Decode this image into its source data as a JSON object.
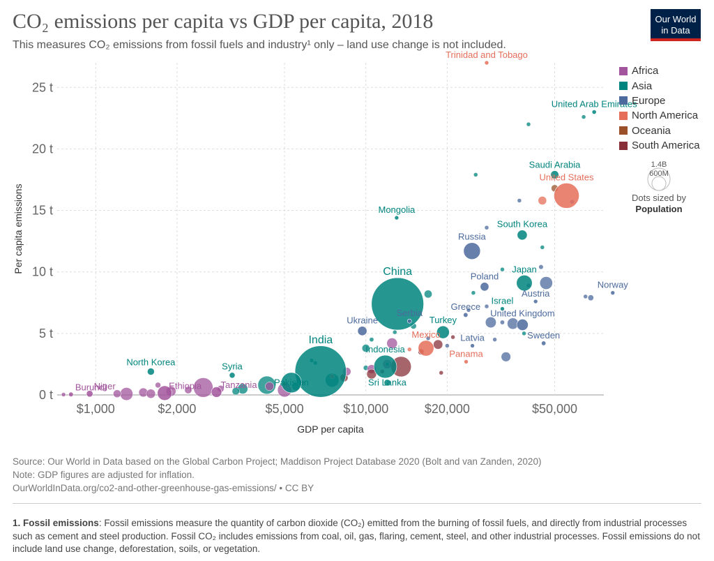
{
  "header": {
    "title": "CO₂ emissions per capita vs GDP per capita, 2018",
    "subtitle": "This measures CO₂ emissions from fossil fuels and industry¹ only – land use change is not included.",
    "logo_line1": "Our World",
    "logo_line2": "in Data"
  },
  "legend": {
    "items": [
      {
        "label": "Africa",
        "color": "#a2559c"
      },
      {
        "label": "Asia",
        "color": "#00847e"
      },
      {
        "label": "Europe",
        "color": "#4c6a9c"
      },
      {
        "label": "North America",
        "color": "#e56e5a"
      },
      {
        "label": "Oceania",
        "color": "#9a5129"
      },
      {
        "label": "South America",
        "color": "#883039"
      }
    ],
    "size_big": "1.4B",
    "size_small": "600M",
    "size_note": "Dots sized by",
    "size_note_bold": "Population"
  },
  "chart_data": {
    "type": "scatter",
    "title": "CO₂ emissions per capita vs GDP per capita, 2018",
    "xlabel": "GDP per capita",
    "ylabel": "Per capita emissions",
    "x_scale": "log",
    "xlim": [
      720,
      76000
    ],
    "ylim": [
      0,
      27
    ],
    "x_ticks": [
      {
        "value": 1000,
        "label": "$1,000"
      },
      {
        "value": 2000,
        "label": "$2,000"
      },
      {
        "value": 5000,
        "label": "$5,000"
      },
      {
        "value": 10000,
        "label": "$10,000"
      },
      {
        "value": 20000,
        "label": "$20,000"
      },
      {
        "value": 50000,
        "label": "$50,000"
      }
    ],
    "y_ticks": [
      {
        "value": 0,
        "label": "0 t"
      },
      {
        "value": 5,
        "label": "5 t"
      },
      {
        "value": 10,
        "label": "10 t"
      },
      {
        "value": 15,
        "label": "15 t"
      },
      {
        "value": 20,
        "label": "20 t"
      },
      {
        "value": 25,
        "label": "25 t"
      }
    ],
    "grid": true,
    "legend_position": "right",
    "labeled_points": [
      {
        "label": "Trinidad and Tobago",
        "region": "North America",
        "gdp": 28000,
        "co2": 27.0,
        "pop": 1.4
      },
      {
        "label": "United Arab Emirates",
        "region": "Asia",
        "gdp": 70000,
        "co2": 23.0,
        "pop": 9.6
      },
      {
        "label": "Saudi Arabia",
        "region": "Asia",
        "gdp": 50000,
        "co2": 17.9,
        "pop": 33.7
      },
      {
        "label": "United States",
        "region": "North America",
        "gdp": 55300,
        "co2": 16.2,
        "pop": 327
      },
      {
        "label": "Mongolia",
        "region": "Asia",
        "gdp": 13000,
        "co2": 14.4,
        "pop": 3.2
      },
      {
        "label": "South Korea",
        "region": "Asia",
        "gdp": 37900,
        "co2": 13.0,
        "pop": 51
      },
      {
        "label": "Russia",
        "region": "Europe",
        "gdp": 24700,
        "co2": 11.7,
        "pop": 145
      },
      {
        "label": "Japan",
        "region": "Asia",
        "gdp": 38600,
        "co2": 9.1,
        "pop": 127
      },
      {
        "label": "Poland",
        "region": "Europe",
        "gdp": 27500,
        "co2": 8.8,
        "pop": 38
      },
      {
        "label": "Norway",
        "region": "Europe",
        "gdp": 82000,
        "co2": 8.3,
        "pop": 5.3
      },
      {
        "label": "China",
        "region": "Asia",
        "gdp": 13100,
        "co2": 7.4,
        "pop": 1400
      },
      {
        "label": "Austria",
        "region": "Europe",
        "gdp": 42500,
        "co2": 7.6,
        "pop": 8.8
      },
      {
        "label": "Israel",
        "region": "Asia",
        "gdp": 32000,
        "co2": 7.0,
        "pop": 8.9
      },
      {
        "label": "Greece",
        "region": "Europe",
        "gdp": 23400,
        "co2": 6.5,
        "pop": 10.7
      },
      {
        "label": "Serbia",
        "region": "Europe",
        "gdp": 14500,
        "co2": 6.0,
        "pop": 7
      },
      {
        "label": "United Kingdom",
        "region": "Europe",
        "gdp": 38000,
        "co2": 5.7,
        "pop": 66
      },
      {
        "label": "Ukraine",
        "region": "Europe",
        "gdp": 9700,
        "co2": 5.2,
        "pop": 44
      },
      {
        "label": "Turkey",
        "region": "Asia",
        "gdp": 19300,
        "co2": 5.1,
        "pop": 82
      },
      {
        "label": "Mexico",
        "region": "North America",
        "gdp": 16700,
        "co2": 3.8,
        "pop": 126
      },
      {
        "label": "Latvia",
        "region": "Europe",
        "gdp": 24800,
        "co2": 4.0,
        "pop": 1.9
      },
      {
        "label": "Sweden",
        "region": "Europe",
        "gdp": 45500,
        "co2": 4.2,
        "pop": 10.2
      },
      {
        "label": "Panama",
        "region": "North America",
        "gdp": 23500,
        "co2": 2.7,
        "pop": 4.2
      },
      {
        "label": "India",
        "region": "Asia",
        "gdp": 6800,
        "co2": 1.9,
        "pop": 1350
      },
      {
        "label": "Indonesia",
        "region": "Asia",
        "gdp": 11800,
        "co2": 2.3,
        "pop": 268
      },
      {
        "label": "Pakistan",
        "region": "Asia",
        "gdp": 5300,
        "co2": 1.0,
        "pop": 212
      },
      {
        "label": "Sri Lanka",
        "region": "Asia",
        "gdp": 12000,
        "co2": 1.0,
        "pop": 21.7
      },
      {
        "label": "North Korea",
        "region": "Asia",
        "gdp": 1600,
        "co2": 1.9,
        "pop": 25.5
      },
      {
        "label": "Syria",
        "region": "Asia",
        "gdp": 3200,
        "co2": 1.6,
        "pop": 17
      },
      {
        "label": "Ethiopia",
        "region": "Africa",
        "gdp": 1800,
        "co2": 0.15,
        "pop": 109
      },
      {
        "label": "Tanzania",
        "region": "Africa",
        "gdp": 2800,
        "co2": 0.23,
        "pop": 56
      },
      {
        "label": "Burundi",
        "region": "Africa",
        "gdp": 810,
        "co2": 0.04,
        "pop": 11
      },
      {
        "label": "Niger",
        "region": "Africa",
        "gdp": 950,
        "co2": 0.1,
        "pop": 22
      }
    ],
    "unlabeled_points": [
      {
        "region": "Asia",
        "gdp": 40000,
        "co2": 22.0,
        "pop": 4
      },
      {
        "region": "Asia",
        "gdp": 64000,
        "co2": 22.6,
        "pop": 2.8
      },
      {
        "region": "Asia",
        "gdp": 25500,
        "co2": 17.9,
        "pop": 0.4
      },
      {
        "region": "Europe",
        "gdp": 37000,
        "co2": 15.8,
        "pop": 0.6
      },
      {
        "region": "North America",
        "gdp": 45000,
        "co2": 15.8,
        "pop": 37
      },
      {
        "region": "Oceania",
        "gdp": 50000,
        "co2": 16.8,
        "pop": 25
      },
      {
        "region": "Europe",
        "gdp": 58000,
        "co2": 15.7,
        "pop": 0.5
      },
      {
        "region": "Europe",
        "gdp": 28000,
        "co2": 13.6,
        "pop": 1.3
      },
      {
        "region": "Asia",
        "gdp": 45000,
        "co2": 12.0,
        "pop": 2.7
      },
      {
        "region": "Europe",
        "gdp": 44500,
        "co2": 10.4,
        "pop": 10.6
      },
      {
        "region": "Asia",
        "gdp": 32000,
        "co2": 10.2,
        "pop": 2
      },
      {
        "region": "Europe",
        "gdp": 46500,
        "co2": 9.1,
        "pop": 83
      },
      {
        "region": "Asia",
        "gdp": 25000,
        "co2": 8.3,
        "pop": 6
      },
      {
        "region": "Asia",
        "gdp": 17000,
        "co2": 8.2,
        "pop": 32
      },
      {
        "region": "Europe",
        "gdp": 40000,
        "co2": 8.9,
        "pop": 1.3
      },
      {
        "region": "Europe",
        "gdp": 65000,
        "co2": 8.0,
        "pop": 0.6
      },
      {
        "region": "Europe",
        "gdp": 68000,
        "co2": 7.9,
        "pop": 17
      },
      {
        "region": "Europe",
        "gdp": 28000,
        "co2": 7.2,
        "pop": 4
      },
      {
        "region": "Europe",
        "gdp": 24000,
        "co2": 6.9,
        "pop": 2
      },
      {
        "region": "Asia",
        "gdp": 15000,
        "co2": 5.6,
        "pop": 18
      },
      {
        "region": "Europe",
        "gdp": 32000,
        "co2": 5.9,
        "pop": 10
      },
      {
        "region": "Europe",
        "gdp": 35000,
        "co2": 5.8,
        "pop": 65
      },
      {
        "region": "Asia",
        "gdp": 38500,
        "co2": 5.0,
        "pop": 4
      },
      {
        "region": "Europe",
        "gdp": 29000,
        "co2": 5.9,
        "pop": 60
      },
      {
        "region": "Europe",
        "gdp": 30000,
        "co2": 4.5,
        "pop": 2
      },
      {
        "region": "Asia",
        "gdp": 10500,
        "co2": 4.5,
        "pop": 10
      },
      {
        "region": "Europe",
        "gdp": 17000,
        "co2": 4.6,
        "pop": 2
      },
      {
        "region": "Europe",
        "gdp": 20000,
        "co2": 4.0,
        "pop": 3
      },
      {
        "region": "Europe",
        "gdp": 33000,
        "co2": 3.1,
        "pop": 47
      },
      {
        "region": "South America",
        "gdp": 21000,
        "co2": 4.7,
        "pop": 1.1
      },
      {
        "region": "South America",
        "gdp": 18500,
        "co2": 4.1,
        "pop": 45
      },
      {
        "region": "Africa",
        "gdp": 12500,
        "co2": 4.2,
        "pop": 58
      },
      {
        "region": "Africa",
        "gdp": 12000,
        "co2": 2.5,
        "pop": 43
      },
      {
        "region": "South America",
        "gdp": 13500,
        "co2": 2.3,
        "pop": 210
      },
      {
        "region": "North America",
        "gdp": 14500,
        "co2": 3.7,
        "pop": 2.9
      },
      {
        "region": "South America",
        "gdp": 16000,
        "co2": 3.5,
        "pop": 18
      },
      {
        "region": "Asia",
        "gdp": 12000,
        "co2": 2.5,
        "pop": 8
      },
      {
        "region": "Asia",
        "gdp": 10000,
        "co2": 2.2,
        "pop": 13
      },
      {
        "region": "Africa",
        "gdp": 10500,
        "co2": 2.1,
        "pop": 40
      },
      {
        "region": "South America",
        "gdp": 8300,
        "co2": 1.4,
        "pop": 33
      },
      {
        "region": "South America",
        "gdp": 10500,
        "co2": 1.7,
        "pop": 49
      },
      {
        "region": "Asia",
        "gdp": 6500,
        "co2": 2.6,
        "pop": 8
      },
      {
        "region": "Asia",
        "gdp": 7500,
        "co2": 1.2,
        "pop": 97
      },
      {
        "region": "Asia",
        "gdp": 4300,
        "co2": 0.8,
        "pop": 165
      },
      {
        "region": "Asia",
        "gdp": 5500,
        "co2": 0.7,
        "pop": 35
      },
      {
        "region": "Asia",
        "gdp": 3500,
        "co2": 0.5,
        "pop": 54
      },
      {
        "region": "Africa",
        "gdp": 4400,
        "co2": 0.7,
        "pop": 38
      },
      {
        "region": "Africa",
        "gdp": 5000,
        "co2": 0.4,
        "pop": 100
      },
      {
        "region": "Africa",
        "gdp": 2500,
        "co2": 0.6,
        "pop": 196
      },
      {
        "region": "Africa",
        "gdp": 1900,
        "co2": 0.3,
        "pop": 51
      },
      {
        "region": "Africa",
        "gdp": 1500,
        "co2": 0.2,
        "pop": 42
      },
      {
        "region": "Africa",
        "gdp": 1300,
        "co2": 0.08,
        "pop": 84
      },
      {
        "region": "Africa",
        "gdp": 1200,
        "co2": 0.1,
        "pop": 31
      },
      {
        "region": "Africa",
        "gdp": 1600,
        "co2": 0.1,
        "pop": 43
      },
      {
        "region": "Africa",
        "gdp": 2200,
        "co2": 0.4,
        "pop": 27
      },
      {
        "region": "Africa",
        "gdp": 2900,
        "co2": 0.5,
        "pop": 24
      },
      {
        "region": "Africa",
        "gdp": 760,
        "co2": 0.03,
        "pop": 5
      },
      {
        "region": "Africa",
        "gdp": 1700,
        "co2": 0.8,
        "pop": 16
      },
      {
        "region": "Asia",
        "gdp": 3300,
        "co2": 0.3,
        "pop": 28
      },
      {
        "region": "Africa",
        "gdp": 5800,
        "co2": 1.0,
        "pop": 11
      },
      {
        "region": "Africa",
        "gdp": 8500,
        "co2": 1.9,
        "pop": 35
      },
      {
        "region": "South America",
        "gdp": 11500,
        "co2": 1.9,
        "pop": 4.5
      },
      {
        "region": "Asia",
        "gdp": 6300,
        "co2": 2.8,
        "pop": 9
      },
      {
        "region": "North America",
        "gdp": 7500,
        "co2": 1.5,
        "pop": 11
      },
      {
        "region": "Oceania",
        "gdp": 5000,
        "co2": 0.9,
        "pop": 0.9
      },
      {
        "region": "South America",
        "gdp": 19000,
        "co2": 1.8,
        "pop": 3.5
      },
      {
        "region": "Asia",
        "gdp": 12800,
        "co2": 5.1,
        "pop": 6
      },
      {
        "region": "Asia",
        "gdp": 10000,
        "co2": 3.8,
        "pop": 31
      }
    ]
  },
  "footer": {
    "source": "Source: Our World in Data based on the Global Carbon Project; Maddison Project Database 2020 (Bolt and van Zanden, 2020)",
    "note": "Note: GDP figures are adjusted for inflation.",
    "url": "OurWorldInData.org/co2-and-other-greenhouse-gas-emissions/ • CC BY",
    "footnote_bold": "1. Fossil emissions",
    "footnote_text": ": Fossil emissions measure the quantity of carbon dioxide (CO₂) emitted from the burning of fossil fuels, and directly from industrial processes such as cement and steel production. Fossil CO₂ includes emissions from coal, oil, gas, flaring, cement, steel, and other industrial processes. Fossil emissions do not include land use change, deforestation, soils, or vegetation."
  }
}
